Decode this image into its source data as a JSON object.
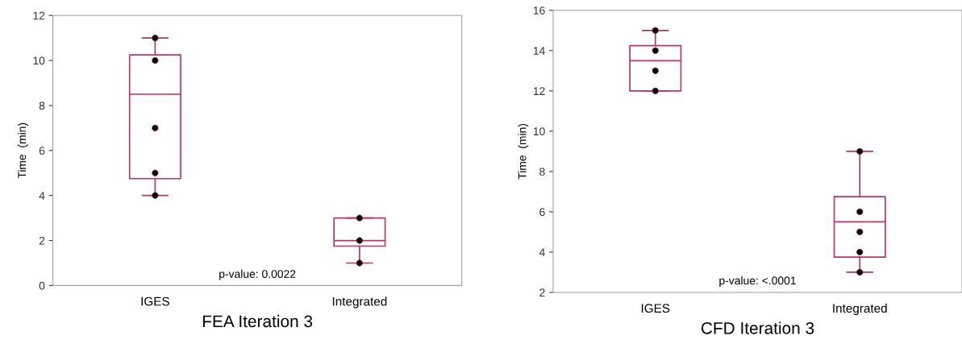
{
  "chart_data": [
    {
      "type": "box",
      "categories": [
        "IGES",
        "Integrated"
      ],
      "xlabel": "FEA Iteration 3",
      "ylabel": "Time  (min)",
      "ylim": [
        0,
        12
      ],
      "yticks": [
        0,
        2,
        4,
        6,
        8,
        10,
        12
      ],
      "grid": false,
      "legend": false,
      "series": [
        {
          "type": "box",
          "color": "#c2306a",
          "boxes": [
            {
              "low": 4,
              "q1": 4.75,
              "median": 8.5,
              "q3": 10.25,
              "high": 11
            },
            {
              "low": 1,
              "q1": 1.75,
              "median": 2,
              "q3": 3,
              "high": 3
            }
          ]
        },
        {
          "type": "scatter",
          "color": "#000000",
          "x": [
            "IGES",
            "IGES",
            "IGES",
            "IGES",
            "IGES",
            "Integrated",
            "Integrated",
            "Integrated"
          ],
          "values": [
            4,
            5,
            7,
            10,
            11,
            1,
            2,
            3
          ]
        }
      ],
      "annotations": [
        "p-value: 0.0022"
      ]
    },
    {
      "type": "box",
      "categories": [
        "IGES",
        "Integrated"
      ],
      "xlabel": "CFD Iteration 3",
      "ylabel": "Time  (min)",
      "ylim": [
        2,
        16
      ],
      "yticks": [
        2,
        4,
        6,
        8,
        10,
        12,
        14,
        16
      ],
      "grid": false,
      "legend": false,
      "series": [
        {
          "type": "box",
          "color": "#c2306a",
          "boxes": [
            {
              "low": 12,
              "q1": 12,
              "median": 13.5,
              "q3": 14.25,
              "high": 15
            },
            {
              "low": 3,
              "q1": 3.75,
              "median": 5.5,
              "q3": 6.75,
              "high": 9
            }
          ]
        },
        {
          "type": "scatter",
          "color": "#000000",
          "x": [
            "IGES",
            "IGES",
            "IGES",
            "IGES",
            "Integrated",
            "Integrated",
            "Integrated",
            "Integrated",
            "Integrated"
          ],
          "values": [
            12,
            13,
            14,
            15,
            3,
            4,
            5,
            6,
            9
          ]
        }
      ],
      "annotations": [
        "p-value: <.0001"
      ]
    }
  ]
}
